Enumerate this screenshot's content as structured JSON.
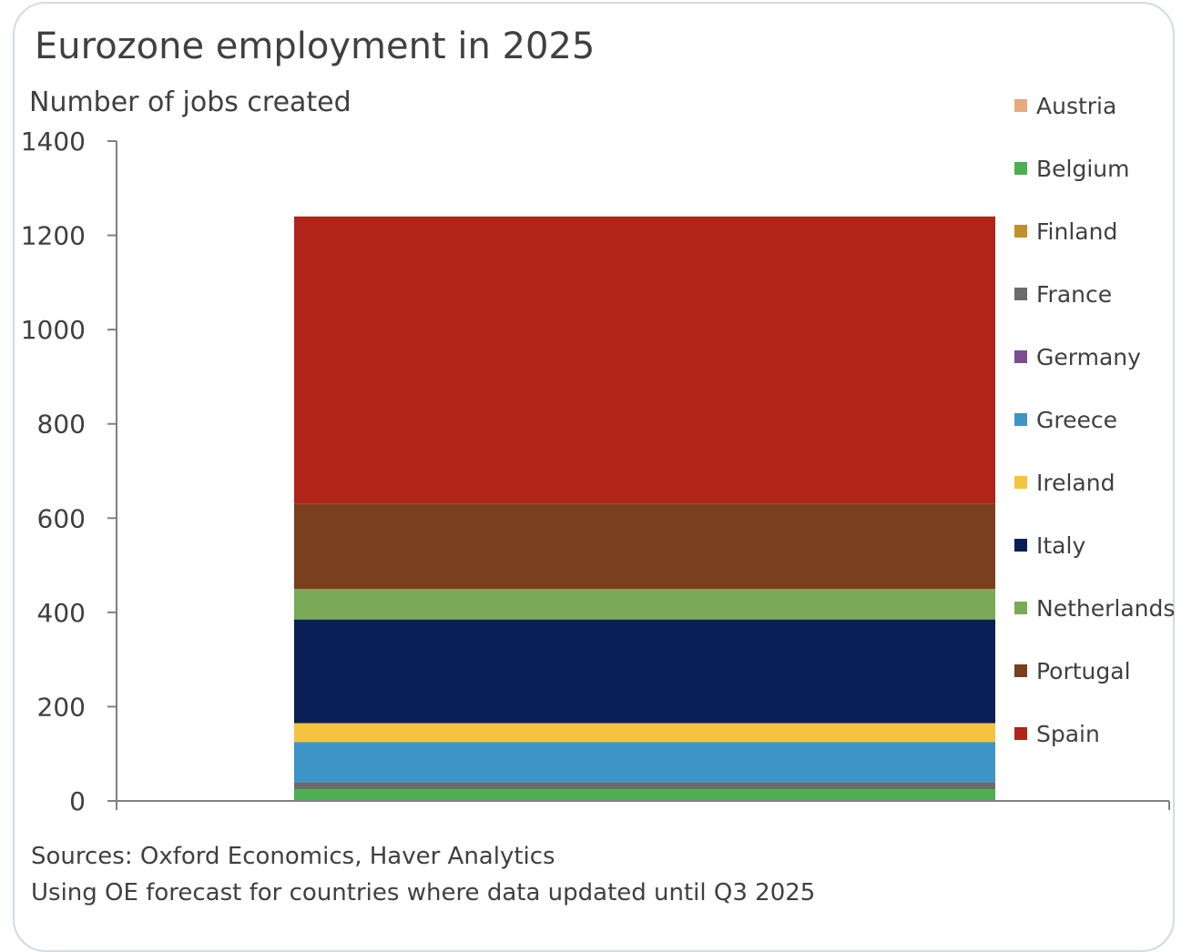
{
  "header": {
    "title": "Eurozone employment in 2025",
    "ylabel": "Number of jobs created"
  },
  "footer": {
    "source_line": "Sources: Oxford Economics, Haver Analytics",
    "note_line": "Using OE forecast for countries where data updated until Q3 2025"
  },
  "chart_data": {
    "type": "bar",
    "stacked": true,
    "title": "Eurozone employment in 2025",
    "xlabel": "",
    "ylabel": "Number of jobs created",
    "ylim": [
      0,
      1400
    ],
    "yticks": [
      0,
      200,
      400,
      600,
      800,
      1000,
      1200,
      1400
    ],
    "categories": [
      ""
    ],
    "grid": false,
    "legend_position": "right",
    "series": [
      {
        "name": "Austria",
        "color": "#e8a97e",
        "values": [
          0
        ]
      },
      {
        "name": "Belgium",
        "color": "#4caf50",
        "values": [
          25
        ]
      },
      {
        "name": "Finland",
        "color": "#c0902c",
        "values": [
          0
        ]
      },
      {
        "name": "France",
        "color": "#6b6b6b",
        "values": [
          15
        ]
      },
      {
        "name": "Germany",
        "color": "#7b4d8e",
        "values": [
          0
        ]
      },
      {
        "name": "Greece",
        "color": "#3d94c6",
        "values": [
          85
        ]
      },
      {
        "name": "Ireland",
        "color": "#f4c33f",
        "values": [
          40
        ]
      },
      {
        "name": "Italy",
        "color": "#0a1f56",
        "values": [
          220
        ]
      },
      {
        "name": "Netherlands",
        "color": "#7aaa55",
        "values": [
          65
        ]
      },
      {
        "name": "Portugal",
        "color": "#7a3f1c",
        "values": [
          180
        ]
      },
      {
        "name": "Spain",
        "color": "#b0241a",
        "values": [
          610
        ]
      }
    ]
  }
}
